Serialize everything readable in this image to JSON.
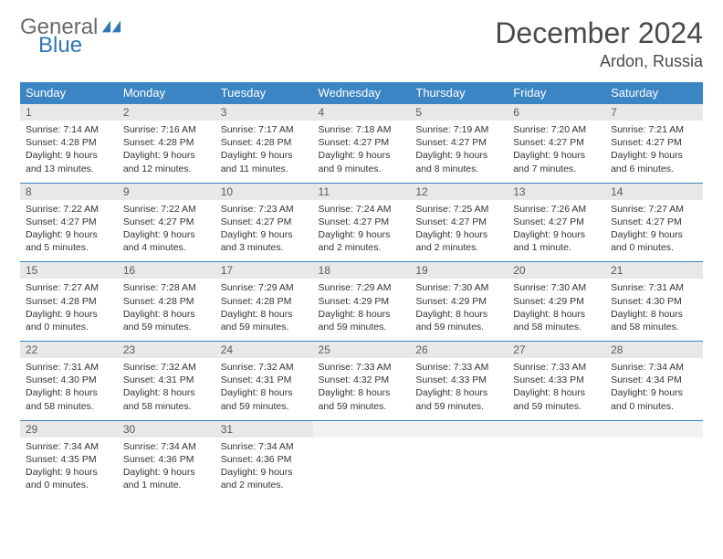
{
  "logo": {
    "text1": "General",
    "text2": "Blue",
    "mark_color": "#2f78b7"
  },
  "title": "December 2024",
  "location": "Ardon, Russia",
  "colors": {
    "header_bg": "#3b85c4",
    "header_text": "#ffffff",
    "daynum_bg": "#e8e8e8",
    "row_border": "#3b85c4",
    "body_text": "#333333",
    "title_text": "#4a4a4a"
  },
  "day_headers": [
    "Sunday",
    "Monday",
    "Tuesday",
    "Wednesday",
    "Thursday",
    "Friday",
    "Saturday"
  ],
  "weeks": [
    [
      {
        "n": "1",
        "sunrise": "Sunrise: 7:14 AM",
        "sunset": "Sunset: 4:28 PM",
        "day1": "Daylight: 9 hours",
        "day2": "and 13 minutes."
      },
      {
        "n": "2",
        "sunrise": "Sunrise: 7:16 AM",
        "sunset": "Sunset: 4:28 PM",
        "day1": "Daylight: 9 hours",
        "day2": "and 12 minutes."
      },
      {
        "n": "3",
        "sunrise": "Sunrise: 7:17 AM",
        "sunset": "Sunset: 4:28 PM",
        "day1": "Daylight: 9 hours",
        "day2": "and 11 minutes."
      },
      {
        "n": "4",
        "sunrise": "Sunrise: 7:18 AM",
        "sunset": "Sunset: 4:27 PM",
        "day1": "Daylight: 9 hours",
        "day2": "and 9 minutes."
      },
      {
        "n": "5",
        "sunrise": "Sunrise: 7:19 AM",
        "sunset": "Sunset: 4:27 PM",
        "day1": "Daylight: 9 hours",
        "day2": "and 8 minutes."
      },
      {
        "n": "6",
        "sunrise": "Sunrise: 7:20 AM",
        "sunset": "Sunset: 4:27 PM",
        "day1": "Daylight: 9 hours",
        "day2": "and 7 minutes."
      },
      {
        "n": "7",
        "sunrise": "Sunrise: 7:21 AM",
        "sunset": "Sunset: 4:27 PM",
        "day1": "Daylight: 9 hours",
        "day2": "and 6 minutes."
      }
    ],
    [
      {
        "n": "8",
        "sunrise": "Sunrise: 7:22 AM",
        "sunset": "Sunset: 4:27 PM",
        "day1": "Daylight: 9 hours",
        "day2": "and 5 minutes."
      },
      {
        "n": "9",
        "sunrise": "Sunrise: 7:22 AM",
        "sunset": "Sunset: 4:27 PM",
        "day1": "Daylight: 9 hours",
        "day2": "and 4 minutes."
      },
      {
        "n": "10",
        "sunrise": "Sunrise: 7:23 AM",
        "sunset": "Sunset: 4:27 PM",
        "day1": "Daylight: 9 hours",
        "day2": "and 3 minutes."
      },
      {
        "n": "11",
        "sunrise": "Sunrise: 7:24 AM",
        "sunset": "Sunset: 4:27 PM",
        "day1": "Daylight: 9 hours",
        "day2": "and 2 minutes."
      },
      {
        "n": "12",
        "sunrise": "Sunrise: 7:25 AM",
        "sunset": "Sunset: 4:27 PM",
        "day1": "Daylight: 9 hours",
        "day2": "and 2 minutes."
      },
      {
        "n": "13",
        "sunrise": "Sunrise: 7:26 AM",
        "sunset": "Sunset: 4:27 PM",
        "day1": "Daylight: 9 hours",
        "day2": "and 1 minute."
      },
      {
        "n": "14",
        "sunrise": "Sunrise: 7:27 AM",
        "sunset": "Sunset: 4:27 PM",
        "day1": "Daylight: 9 hours",
        "day2": "and 0 minutes."
      }
    ],
    [
      {
        "n": "15",
        "sunrise": "Sunrise: 7:27 AM",
        "sunset": "Sunset: 4:28 PM",
        "day1": "Daylight: 9 hours",
        "day2": "and 0 minutes."
      },
      {
        "n": "16",
        "sunrise": "Sunrise: 7:28 AM",
        "sunset": "Sunset: 4:28 PM",
        "day1": "Daylight: 8 hours",
        "day2": "and 59 minutes."
      },
      {
        "n": "17",
        "sunrise": "Sunrise: 7:29 AM",
        "sunset": "Sunset: 4:28 PM",
        "day1": "Daylight: 8 hours",
        "day2": "and 59 minutes."
      },
      {
        "n": "18",
        "sunrise": "Sunrise: 7:29 AM",
        "sunset": "Sunset: 4:29 PM",
        "day1": "Daylight: 8 hours",
        "day2": "and 59 minutes."
      },
      {
        "n": "19",
        "sunrise": "Sunrise: 7:30 AM",
        "sunset": "Sunset: 4:29 PM",
        "day1": "Daylight: 8 hours",
        "day2": "and 59 minutes."
      },
      {
        "n": "20",
        "sunrise": "Sunrise: 7:30 AM",
        "sunset": "Sunset: 4:29 PM",
        "day1": "Daylight: 8 hours",
        "day2": "and 58 minutes."
      },
      {
        "n": "21",
        "sunrise": "Sunrise: 7:31 AM",
        "sunset": "Sunset: 4:30 PM",
        "day1": "Daylight: 8 hours",
        "day2": "and 58 minutes."
      }
    ],
    [
      {
        "n": "22",
        "sunrise": "Sunrise: 7:31 AM",
        "sunset": "Sunset: 4:30 PM",
        "day1": "Daylight: 8 hours",
        "day2": "and 58 minutes."
      },
      {
        "n": "23",
        "sunrise": "Sunrise: 7:32 AM",
        "sunset": "Sunset: 4:31 PM",
        "day1": "Daylight: 8 hours",
        "day2": "and 58 minutes."
      },
      {
        "n": "24",
        "sunrise": "Sunrise: 7:32 AM",
        "sunset": "Sunset: 4:31 PM",
        "day1": "Daylight: 8 hours",
        "day2": "and 59 minutes."
      },
      {
        "n": "25",
        "sunrise": "Sunrise: 7:33 AM",
        "sunset": "Sunset: 4:32 PM",
        "day1": "Daylight: 8 hours",
        "day2": "and 59 minutes."
      },
      {
        "n": "26",
        "sunrise": "Sunrise: 7:33 AM",
        "sunset": "Sunset: 4:33 PM",
        "day1": "Daylight: 8 hours",
        "day2": "and 59 minutes."
      },
      {
        "n": "27",
        "sunrise": "Sunrise: 7:33 AM",
        "sunset": "Sunset: 4:33 PM",
        "day1": "Daylight: 8 hours",
        "day2": "and 59 minutes."
      },
      {
        "n": "28",
        "sunrise": "Sunrise: 7:34 AM",
        "sunset": "Sunset: 4:34 PM",
        "day1": "Daylight: 9 hours",
        "day2": "and 0 minutes."
      }
    ],
    [
      {
        "n": "29",
        "sunrise": "Sunrise: 7:34 AM",
        "sunset": "Sunset: 4:35 PM",
        "day1": "Daylight: 9 hours",
        "day2": "and 0 minutes."
      },
      {
        "n": "30",
        "sunrise": "Sunrise: 7:34 AM",
        "sunset": "Sunset: 4:36 PM",
        "day1": "Daylight: 9 hours",
        "day2": "and 1 minute."
      },
      {
        "n": "31",
        "sunrise": "Sunrise: 7:34 AM",
        "sunset": "Sunset: 4:36 PM",
        "day1": "Daylight: 9 hours",
        "day2": "and 2 minutes."
      },
      {
        "empty": true
      },
      {
        "empty": true
      },
      {
        "empty": true
      },
      {
        "empty": true
      }
    ]
  ]
}
